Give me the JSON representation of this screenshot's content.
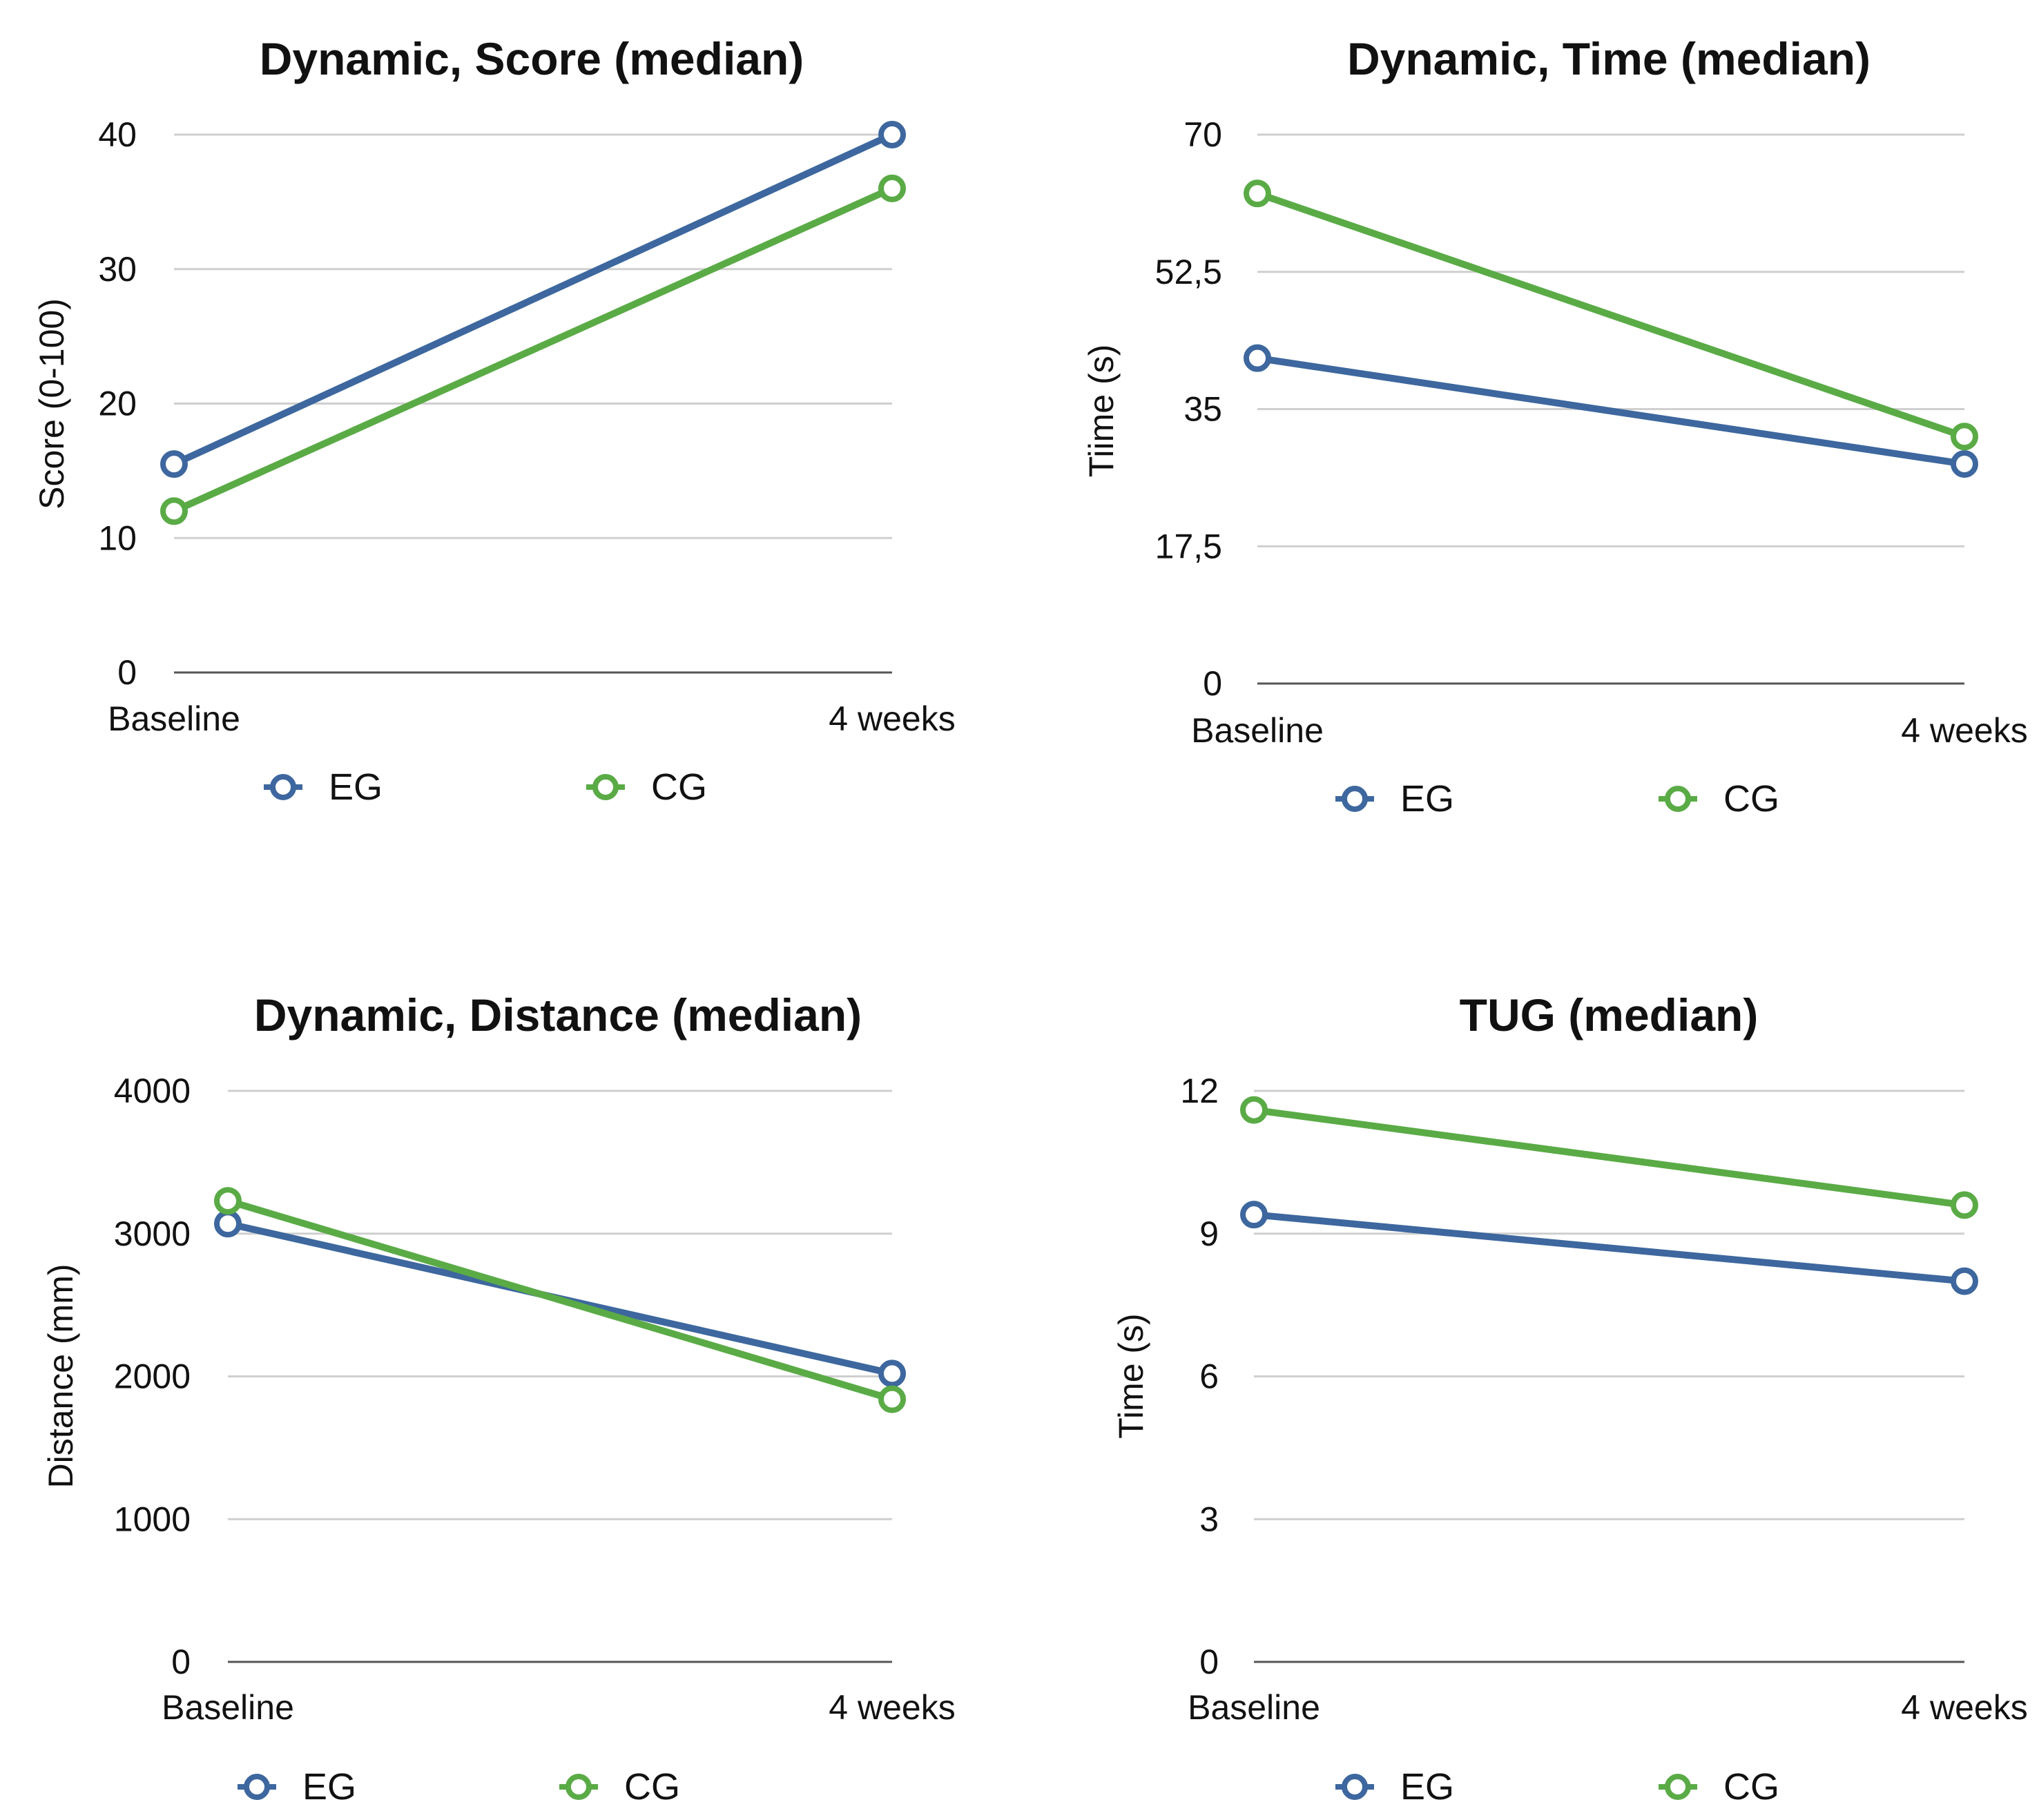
{
  "colors": {
    "EG": "#3d679e",
    "CG": "#5aab46"
  },
  "chart_data": [
    {
      "type": "line",
      "title": "Dynamic, Score (median)",
      "xlabel": "",
      "ylabel": "Score (0-100)",
      "categories": [
        "Baseline",
        "4 weeks"
      ],
      "ylim": [
        0,
        40
      ],
      "yticks": [
        0,
        10,
        20,
        30,
        40
      ],
      "ytick_labels": [
        "0",
        "10",
        "20",
        "30",
        "40"
      ],
      "grid": true,
      "legend_position": "bottom",
      "series": [
        {
          "name": "EG",
          "values": [
            15.5,
            40
          ]
        },
        {
          "name": "CG",
          "values": [
            12,
            36
          ]
        }
      ]
    },
    {
      "type": "line",
      "title": "Dynamic, Time (median)",
      "xlabel": "",
      "ylabel": "Tiime (s)",
      "categories": [
        "Baseline",
        "4 weeks"
      ],
      "ylim": [
        0,
        70
      ],
      "yticks": [
        0,
        17.5,
        35,
        52.5,
        70
      ],
      "ytick_labels": [
        "0",
        "17,5",
        "35",
        "52,5",
        "70"
      ],
      "grid": true,
      "legend_position": "bottom",
      "series": [
        {
          "name": "EG",
          "values": [
            41.5,
            28
          ]
        },
        {
          "name": "CG",
          "values": [
            62.5,
            31.5
          ]
        }
      ]
    },
    {
      "type": "line",
      "title": "Dynamic, Distance (median)",
      "xlabel": "",
      "ylabel": "Distance (mm)",
      "categories": [
        "Baseline",
        "4 weeks"
      ],
      "ylim": [
        0,
        4000
      ],
      "yticks": [
        0,
        1000,
        2000,
        3000,
        4000
      ],
      "ytick_labels": [
        "0",
        "1000",
        "2000",
        "3000",
        "4000"
      ],
      "grid": true,
      "legend_position": "bottom",
      "series": [
        {
          "name": "EG",
          "values": [
            3070,
            2020
          ]
        },
        {
          "name": "CG",
          "values": [
            3230,
            1840
          ]
        }
      ]
    },
    {
      "type": "line",
      "title": "TUG (median)",
      "xlabel": "",
      "ylabel": "Time (s)",
      "categories": [
        "Baseline",
        "4 weeks"
      ],
      "ylim": [
        0,
        12
      ],
      "yticks": [
        0,
        3,
        6,
        9,
        12
      ],
      "ytick_labels": [
        "0",
        "3",
        "6",
        "9",
        "12"
      ],
      "grid": true,
      "legend_position": "bottom",
      "series": [
        {
          "name": "EG",
          "values": [
            9.4,
            8.0
          ]
        },
        {
          "name": "CG",
          "values": [
            11.6,
            9.6
          ]
        }
      ]
    }
  ]
}
